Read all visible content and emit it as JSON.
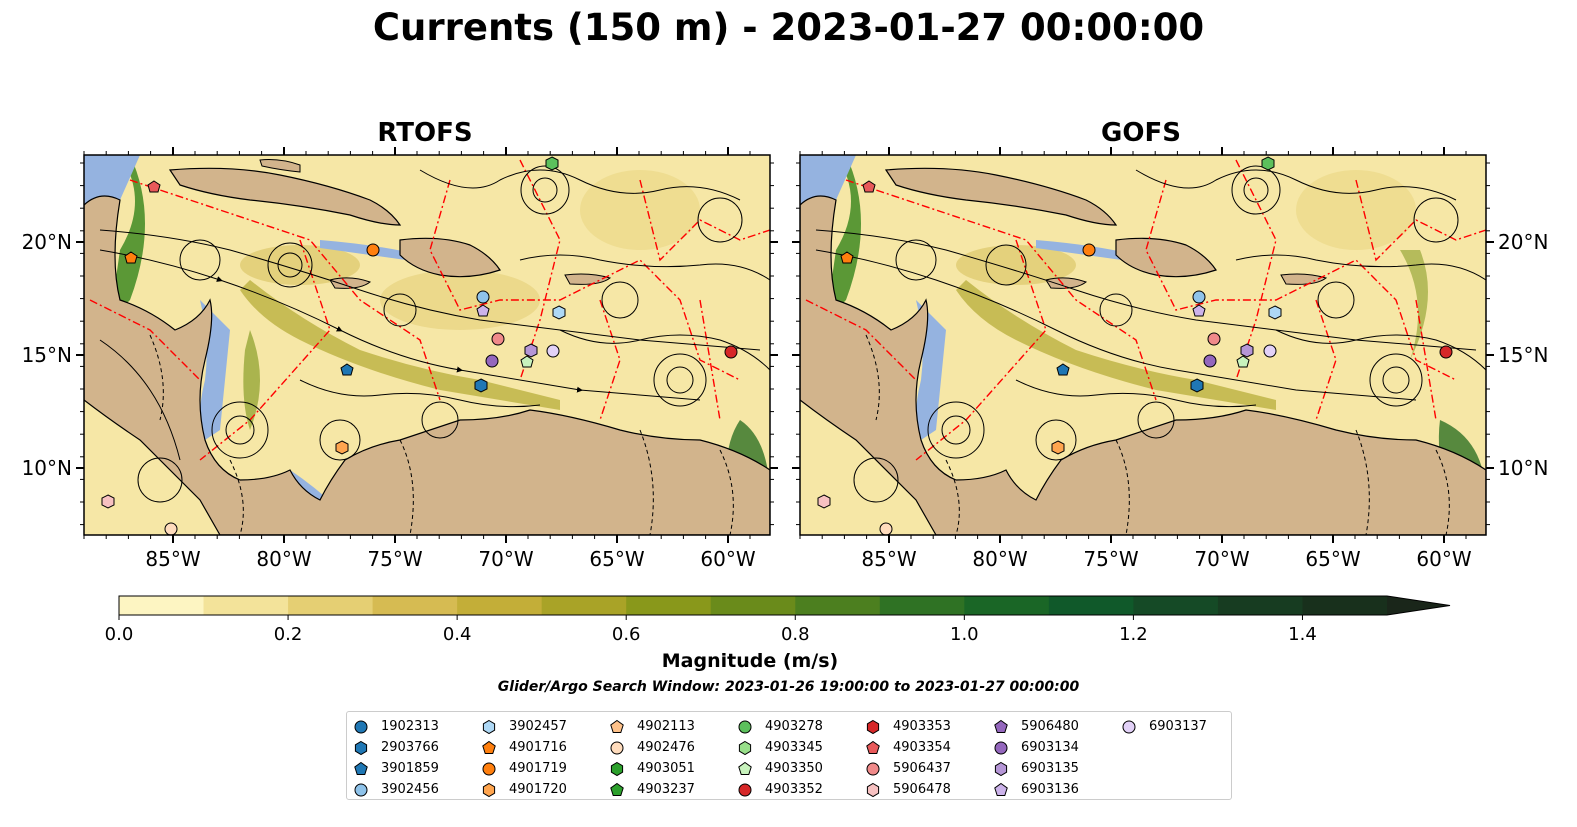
{
  "title": "Currents (150 m) - 2023-01-27 00:00:00",
  "maps": [
    {
      "title": "RTOFS",
      "x_ticks": [
        "85°W",
        "80°W",
        "75°W",
        "70°W",
        "65°W",
        "60°W"
      ],
      "y_ticks": [
        "20°N",
        "15°N",
        "10°N"
      ]
    },
    {
      "title": "GOFS",
      "x_ticks": [
        "85°W",
        "80°W",
        "75°W",
        "70°W",
        "65°W",
        "60°W"
      ],
      "y_ticks": [
        "20°N",
        "15°N",
        "10°N"
      ]
    }
  ],
  "colorbar": {
    "label": "Magnitude (m/s)",
    "ticks": [
      "0.0",
      "0.2",
      "0.4",
      "0.6",
      "0.8",
      "1.0",
      "1.2",
      "1.4"
    ],
    "colors": [
      "#fdf5c2",
      "#f3e39a",
      "#e5cf73",
      "#d6bb52",
      "#c3ae38",
      "#a9a327",
      "#89981b",
      "#6a8b1b",
      "#4c7f1f",
      "#2f7224",
      "#1a6626",
      "#10592a",
      "#154a26",
      "#173c21",
      "#18301c",
      "#1a261a"
    ],
    "range": [
      0,
      1.6
    ]
  },
  "search_window": "Glider/Argo Search Window: 2023-01-26 19:00:00 to 2023-01-27 00:00:00",
  "legend": [
    {
      "id": "1902313",
      "color": "#1f77b4",
      "shape": "circle"
    },
    {
      "id": "2903766",
      "color": "#1f77b4",
      "shape": "hexagon"
    },
    {
      "id": "3901859",
      "color": "#1f77b4",
      "shape": "pentagon"
    },
    {
      "id": "3902456",
      "color": "#8fc3ea",
      "shape": "circle"
    },
    {
      "id": "3902457",
      "color": "#aed8f5",
      "shape": "hexagon"
    },
    {
      "id": "4901716",
      "color": "#ff7f0e",
      "shape": "pentagon"
    },
    {
      "id": "4901719",
      "color": "#ff7f0e",
      "shape": "circle"
    },
    {
      "id": "4901720",
      "color": "#ffa54f",
      "shape": "hexagon"
    },
    {
      "id": "4902113",
      "color": "#ffc28a",
      "shape": "pentagon"
    },
    {
      "id": "4902476",
      "color": "#ffdcbd",
      "shape": "circle"
    },
    {
      "id": "4903051",
      "color": "#2ca02c",
      "shape": "hexagon"
    },
    {
      "id": "4903237",
      "color": "#2ca02c",
      "shape": "pentagon"
    },
    {
      "id": "4903278",
      "color": "#5cc05c",
      "shape": "circle"
    },
    {
      "id": "4903345",
      "color": "#98df8a",
      "shape": "hexagon"
    },
    {
      "id": "4903350",
      "color": "#c8f3bd",
      "shape": "pentagon"
    },
    {
      "id": "4903352",
      "color": "#d62728",
      "shape": "circle"
    },
    {
      "id": "4903353",
      "color": "#d62728",
      "shape": "hexagon"
    },
    {
      "id": "4903354",
      "color": "#e8595a",
      "shape": "pentagon"
    },
    {
      "id": "5906437",
      "color": "#f08a8a",
      "shape": "circle"
    },
    {
      "id": "5906478",
      "color": "#f7c1c1",
      "shape": "hexagon"
    },
    {
      "id": "5906480",
      "color": "#9467bd",
      "shape": "pentagon"
    },
    {
      "id": "6903134",
      "color": "#9467bd",
      "shape": "circle"
    },
    {
      "id": "6903135",
      "color": "#b596d6",
      "shape": "hexagon"
    },
    {
      "id": "6903136",
      "color": "#ccb3ea",
      "shape": "pentagon"
    },
    {
      "id": "6903137",
      "color": "#e2d1f7",
      "shape": "circle"
    }
  ],
  "colors": {
    "land": "#d2b48c",
    "water": "#95b3e0",
    "eez": "#ff0000"
  }
}
